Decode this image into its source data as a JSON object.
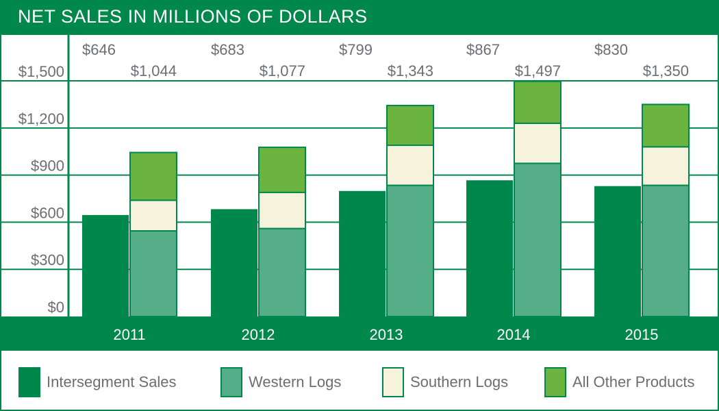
{
  "chart_data": {
    "type": "bar",
    "title": "NET SALES IN MILLIONS OF DOLLARS",
    "categories": [
      "2011",
      "2012",
      "2013",
      "2014",
      "2015"
    ],
    "ylim": [
      0,
      1500
    ],
    "yticks": [
      0,
      300,
      600,
      900,
      1200,
      1500
    ],
    "ytick_labels": [
      "$0",
      "$300",
      "$600",
      "$900",
      "$1,200",
      "$1,500"
    ],
    "series": [
      {
        "name": "Intersegment Sales",
        "color": "#00874b",
        "stack": "intersegment",
        "values": [
          646,
          683,
          799,
          867,
          830
        ]
      },
      {
        "name": "Western Logs",
        "color": "#55ae88",
        "stack": "segments",
        "values": [
          545,
          560,
          835,
          975,
          835
        ]
      },
      {
        "name": "Southern Logs",
        "color": "#f7f2dc",
        "stack": "segments",
        "values": [
          195,
          230,
          255,
          255,
          245
        ]
      },
      {
        "name": "All Other Products",
        "color": "#6bb440",
        "stack": "segments",
        "values": [
          304,
          287,
          253,
          267,
          270
        ]
      }
    ],
    "data_labels": {
      "intersegment": [
        "$646",
        "$683",
        "$799",
        "$867",
        "$830"
      ],
      "segments_total": [
        "$1,044",
        "$1,077",
        "$1,343",
        "$1,497",
        "$1,350"
      ]
    },
    "grid": true,
    "legend": "bottom"
  }
}
